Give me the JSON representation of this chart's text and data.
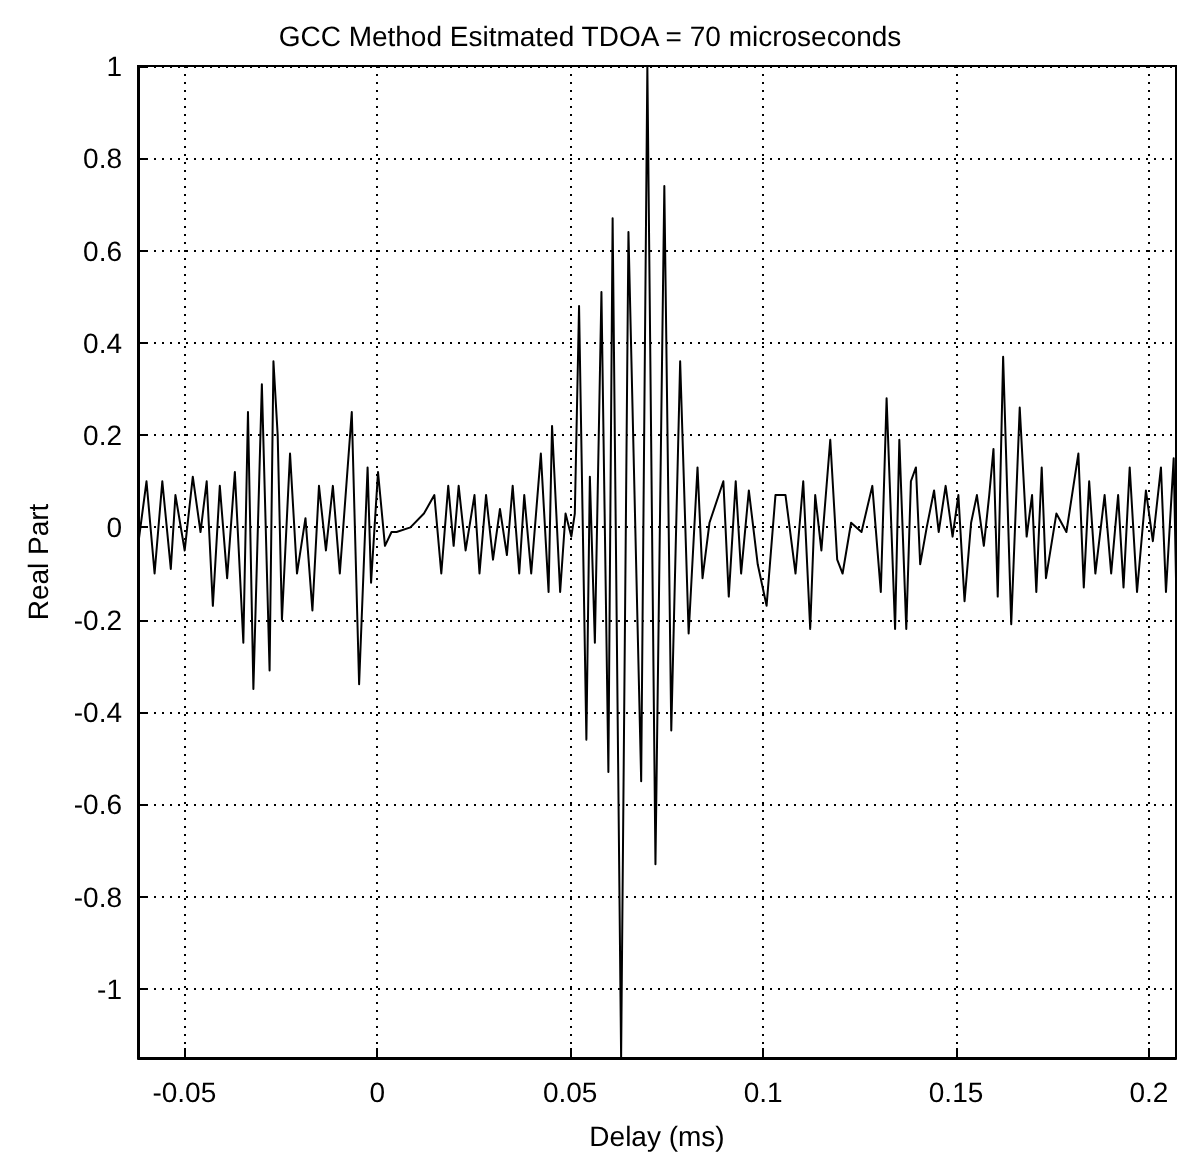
{
  "chart_data": {
    "type": "line",
    "title": "GCC Method Esitmated TDOA = 70 microseconds",
    "xlabel": "Delay (ms)",
    "ylabel": "Real Part",
    "x": [
      -0.062,
      -0.0598,
      -0.0577,
      -0.0557,
      -0.0535,
      -0.0523,
      -0.0499,
      -0.0478,
      -0.0458,
      -0.0442,
      -0.0426,
      -0.0408,
      -0.0389,
      -0.0369,
      -0.0347,
      -0.0335,
      -0.0321,
      -0.0299,
      -0.0279,
      -0.0269,
      -0.0258,
      -0.0247,
      -0.0226,
      -0.0208,
      -0.0186,
      -0.0168,
      -0.0151,
      -0.0133,
      -0.0115,
      -0.0097,
      -0.0066,
      -0.0047,
      -0.0025,
      -0.0016,
      0.0002,
      0.002,
      0.0037,
      0.005,
      0.0086,
      0.0121,
      0.0148,
      0.0166,
      0.0184,
      0.0198,
      0.0211,
      0.0229,
      0.0252,
      0.0265,
      0.0282,
      0.03,
      0.0318,
      0.0336,
      0.0351,
      0.0368,
      0.0381,
      0.0399,
      0.0424,
      0.0444,
      0.0453,
      0.0474,
      0.0488,
      0.0503,
      0.0512,
      0.0523,
      0.0542,
      0.0551,
      0.0564,
      0.0581,
      0.0599,
      0.061,
      0.0632,
      0.0651,
      0.0684,
      0.07,
      0.0721,
      0.0744,
      0.0762,
      0.0785,
      0.0807,
      0.083,
      0.0843,
      0.0861,
      0.0897,
      0.0911,
      0.0929,
      0.0943,
      0.0963,
      0.0986,
      0.1009,
      0.1032,
      0.1058,
      0.1084,
      0.1104,
      0.1122,
      0.1135,
      0.1151,
      0.1174,
      0.1192,
      0.1206,
      0.1228,
      0.1255,
      0.1283,
      0.1305,
      0.132,
      0.1342,
      0.1353,
      0.1371,
      0.1383,
      0.1396,
      0.1407,
      0.1424,
      0.1443,
      0.1455,
      0.1473,
      0.1491,
      0.1506,
      0.1522,
      0.1539,
      0.1554,
      0.1572,
      0.1586,
      0.1597,
      0.1608,
      0.1622,
      0.1643,
      0.1665,
      0.1683,
      0.1697,
      0.1708,
      0.1722,
      0.1733,
      0.176,
      0.1786,
      0.1817,
      0.1831,
      0.1845,
      0.1861,
      0.1885,
      0.1902,
      0.192,
      0.1934,
      0.195,
      0.1969,
      0.1992,
      0.201,
      0.2031,
      0.2044,
      0.2064,
      0.207
    ],
    "series": [
      {
        "color": "#000000",
        "values": [
          -0.04,
          0.1,
          -0.1,
          0.1,
          -0.09,
          0.07,
          -0.05,
          0.11,
          -0.01,
          0.1,
          -0.17,
          0.09,
          -0.11,
          0.12,
          -0.25,
          0.25,
          -0.35,
          0.31,
          -0.31,
          0.36,
          0.2,
          -0.2,
          0.16,
          -0.1,
          0.02,
          -0.18,
          0.09,
          -0.05,
          0.09,
          -0.1,
          0.25,
          -0.34,
          0.13,
          -0.12,
          0.12,
          -0.04,
          -0.01,
          -0.01,
          0,
          0.03,
          0.07,
          -0.1,
          0.09,
          -0.04,
          0.09,
          -0.05,
          0.07,
          -0.1,
          0.07,
          -0.07,
          0.04,
          -0.06,
          0.09,
          -0.1,
          0.07,
          -0.1,
          0.16,
          -0.14,
          0.22,
          -0.14,
          0.03,
          -0.02,
          0.03,
          0.48,
          -0.46,
          0.11,
          -0.25,
          0.51,
          -0.53,
          0.67,
          -1.15,
          0.64,
          -0.55,
          1.0,
          -0.73,
          0.74,
          -0.44,
          0.36,
          -0.23,
          0.13,
          -0.11,
          0.01,
          0.1,
          -0.15,
          0.1,
          -0.1,
          0.08,
          -0.08,
          -0.17,
          0.07,
          0.07,
          -0.1,
          0.1,
          -0.22,
          0.07,
          -0.05,
          0.19,
          -0.07,
          -0.1,
          0.01,
          -0.01,
          0.09,
          -0.14,
          0.28,
          -0.22,
          0.19,
          -0.22,
          0.1,
          0.13,
          -0.08,
          0,
          0.08,
          -0.01,
          0.09,
          -0.02,
          0.07,
          -0.16,
          0.01,
          0.07,
          -0.04,
          0.07,
          0.17,
          -0.15,
          0.37,
          -0.21,
          0.26,
          -0.02,
          0.07,
          -0.14,
          0.13,
          -0.11,
          0.03,
          -0.01,
          0.16,
          -0.13,
          0.1,
          -0.1,
          0.07,
          -0.1,
          0.07,
          -0.13,
          0.13,
          -0.14,
          0.08,
          -0.03,
          0.13,
          -0.14,
          0.15,
          -0.11
        ]
      }
    ],
    "xlim": [
      -0.062,
      0.207
    ],
    "xticks": [
      -0.05,
      0,
      0.05,
      0.1,
      0.15,
      0.2
    ],
    "ylim": [
      -1.15,
      1
    ],
    "yticks": [
      -1,
      -0.8,
      -0.6,
      -0.4,
      -0.2,
      0,
      0.2,
      0.4,
      0.6,
      0.8,
      1
    ],
    "grid": true,
    "line_style": "solid"
  }
}
